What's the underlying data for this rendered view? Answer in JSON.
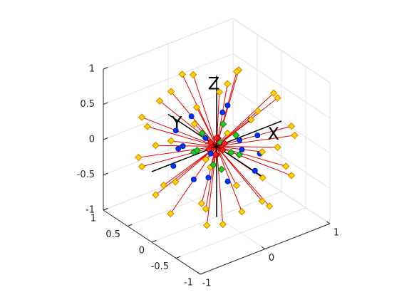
{
  "chart_data": {
    "type": "scatter3",
    "axis_labels": {
      "x": "X",
      "y": "Y",
      "z": "Z"
    },
    "xlim": [
      -1,
      1
    ],
    "ylim": [
      -1,
      1
    ],
    "zlim": [
      -1,
      1
    ],
    "xticks": [
      -1,
      0,
      1
    ],
    "yticks": [
      -1,
      -0.5,
      0,
      0.5,
      1
    ],
    "zticks": [
      -1,
      -0.5,
      0,
      0.5,
      1
    ],
    "grid": true,
    "series": [
      {
        "color": "#ffd700",
        "edge": "#d08000",
        "marker": "diamond",
        "stems": true,
        "stem_color": "#e00000",
        "x": [
          0.31,
          -0.16,
          -0.16,
          0.61,
          0,
          -0.61,
          -0.61,
          0,
          0.61,
          0.94,
          0.66,
          0,
          -0.66,
          -0.94,
          -0.66,
          0,
          0.66,
          0.92,
          0.38,
          -0.38,
          -0.92,
          -0.92,
          -0.38,
          0.38,
          0.92,
          0.94,
          0.66,
          0,
          -0.66,
          -0.94,
          -0.66,
          0,
          0.66,
          0.71,
          0.36,
          -0.36,
          -0.71,
          -0.36,
          0.36,
          0,
          0.27,
          -0.27
        ],
        "y": [
          0,
          0.27,
          -0.27,
          0.36,
          0.71,
          0.36,
          -0.36,
          -0.71,
          -0.36,
          0,
          0.66,
          0.94,
          0.66,
          0,
          -0.66,
          -0.94,
          -0.66,
          0.38,
          0.92,
          0.92,
          0.38,
          -0.38,
          -0.92,
          -0.92,
          -0.38,
          0,
          0.66,
          0.94,
          0.66,
          0,
          -0.66,
          -0.94,
          -0.66,
          0,
          0.61,
          0.61,
          0,
          -0.61,
          -0.61,
          0.31,
          -0.16,
          -0.16
        ],
        "z": [
          0.95,
          0.95,
          0.95,
          0.7,
          0.7,
          0.7,
          0.7,
          0.7,
          0.7,
          0.35,
          0.35,
          0.35,
          0.35,
          0.35,
          0.35,
          0.35,
          0.35,
          0,
          0,
          0,
          0,
          0,
          0,
          0,
          0,
          -0.35,
          -0.35,
          -0.35,
          -0.35,
          -0.35,
          -0.35,
          -0.35,
          -0.35,
          -0.7,
          -0.7,
          -0.7,
          -0.7,
          -0.7,
          -0.7,
          -0.95,
          -0.95,
          -0.95
        ]
      },
      {
        "color": "#0033ff",
        "edge": "#002299",
        "marker": "circle",
        "x": [
          0.52,
          0.36,
          0,
          -0.36,
          -0.52,
          -0.36,
          0,
          0.36,
          0.51,
          0.21,
          -0.21,
          -0.51,
          -0.51,
          -0.21,
          0.21,
          0.51,
          0.17,
          0
        ],
        "y": [
          0,
          0.36,
          0.52,
          0.36,
          0,
          -0.36,
          -0.52,
          -0.36,
          0.21,
          0.51,
          0.51,
          0.21,
          -0.21,
          -0.51,
          -0.51,
          -0.21,
          0,
          0.17
        ],
        "z": [
          0.19,
          0.19,
          0.19,
          0.19,
          0.19,
          0.19,
          0.19,
          0.19,
          -0.19,
          -0.19,
          -0.19,
          -0.19,
          -0.19,
          -0.19,
          -0.19,
          -0.19,
          0.52,
          -0.52
        ]
      },
      {
        "color": "#22cc22",
        "edge": "#117711",
        "marker": "diamond",
        "x": [
          0.3,
          0,
          -0.3,
          0,
          0.2,
          -0.2,
          -0.2,
          0.2,
          0.1,
          0
        ],
        "y": [
          0,
          0.3,
          0,
          -0.3,
          0.2,
          0.2,
          -0.2,
          -0.2,
          0,
          -0.1
        ],
        "z": [
          0.05,
          0.05,
          0.05,
          0.05,
          -0.1,
          -0.1,
          -0.1,
          -0.1,
          0.28,
          -0.28
        ]
      },
      {
        "color": "#ff2020",
        "edge": "#aa0000",
        "marker": "diamond",
        "x": [
          0.12,
          0,
          -0.12,
          0,
          0,
          0,
          0.08,
          -0.08
        ],
        "y": [
          0,
          0.12,
          0,
          -0.12,
          0,
          0,
          0.08,
          -0.08
        ],
        "z": [
          0,
          0,
          0,
          0,
          0.12,
          -0.12,
          0.05,
          -0.05
        ]
      }
    ]
  }
}
